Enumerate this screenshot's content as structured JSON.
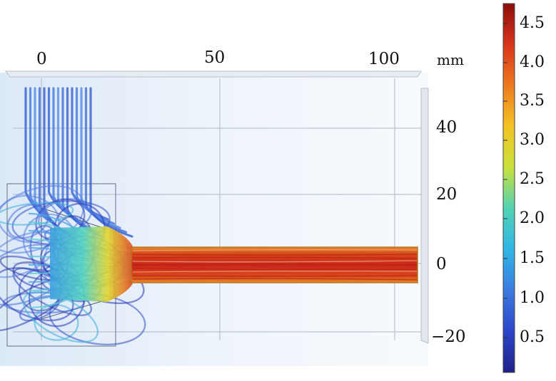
{
  "plot": {
    "x_axis": {
      "unit": "mm",
      "ticks": [
        "0",
        "50",
        "100"
      ]
    },
    "y_axis": {
      "ticks": [
        "40",
        "20",
        "0",
        "−20"
      ]
    }
  },
  "colorbar": {
    "ticks": [
      "4.5",
      "4.0",
      "3.5",
      "3.0",
      "2.5",
      "2.0",
      "1.5",
      "1.0",
      "0.5"
    ],
    "gradient": [
      "#20208a",
      "#2c46c8",
      "#3b7be0",
      "#2fb6e6",
      "#52d2b4",
      "#c9e23c",
      "#f2c323",
      "#ee7a1e",
      "#d9341a",
      "#8c0d0d"
    ]
  }
}
